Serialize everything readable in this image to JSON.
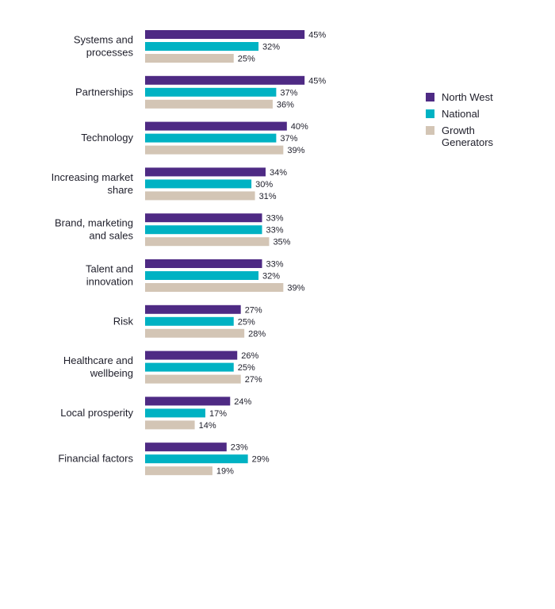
{
  "chart_data": {
    "type": "bar",
    "orientation": "horizontal",
    "categories": [
      "Systems and processes",
      "Partnerships",
      "Technology",
      "Increasing market share",
      "Brand, marketing and sales",
      "Talent and innovation",
      "Risk",
      "Healthcare and wellbeing",
      "Local prosperity",
      "Financial factors"
    ],
    "series": [
      {
        "name": "North West",
        "color": "#4e2a84",
        "values": [
          45,
          45,
          40,
          34,
          33,
          33,
          27,
          26,
          24,
          23
        ]
      },
      {
        "name": "National",
        "color": "#00b2c3",
        "values": [
          32,
          37,
          37,
          30,
          33,
          32,
          25,
          25,
          17,
          29
        ]
      },
      {
        "name": "Growth Generators",
        "color": "#d3c5b5",
        "values": [
          25,
          36,
          39,
          31,
          35,
          39,
          28,
          27,
          14,
          19
        ]
      }
    ],
    "value_suffix": "%",
    "legend_position": "right",
    "grid": false
  }
}
